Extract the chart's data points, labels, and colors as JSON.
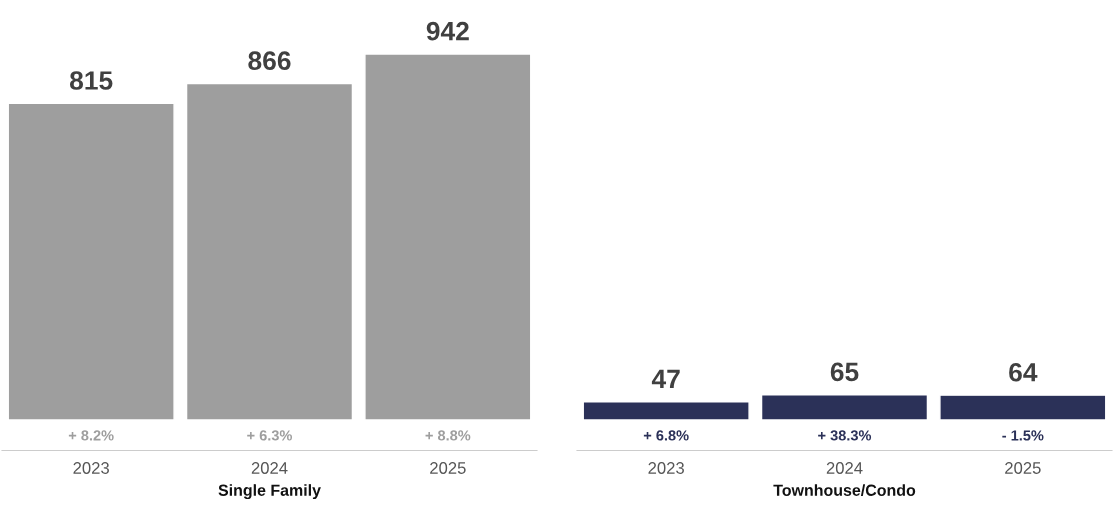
{
  "chart_data": [
    {
      "type": "bar",
      "categories": [
        "2023",
        "2024",
        "2025"
      ],
      "values": [
        815,
        866,
        942
      ],
      "color": "#9e9e9e",
      "data_labels": true,
      "xlabel": "Single Family",
      "tick_labels": "x",
      "grid": false,
      "legend": false,
      "annotations": [
        "+ 8.2%",
        "+ 6.3%",
        "+ 8.8%"
      ]
    },
    {
      "type": "bar",
      "categories": [
        "2023",
        "2024",
        "2025"
      ],
      "values": [
        47,
        65,
        64
      ],
      "color": "#2b3158",
      "data_labels": true,
      "xlabel": "Townhouse/Condo",
      "tick_labels": "x",
      "grid": false,
      "legend": false,
      "annotations": [
        "+ 6.8%",
        "+ 38.3%",
        "- 1.5%"
      ]
    }
  ]
}
